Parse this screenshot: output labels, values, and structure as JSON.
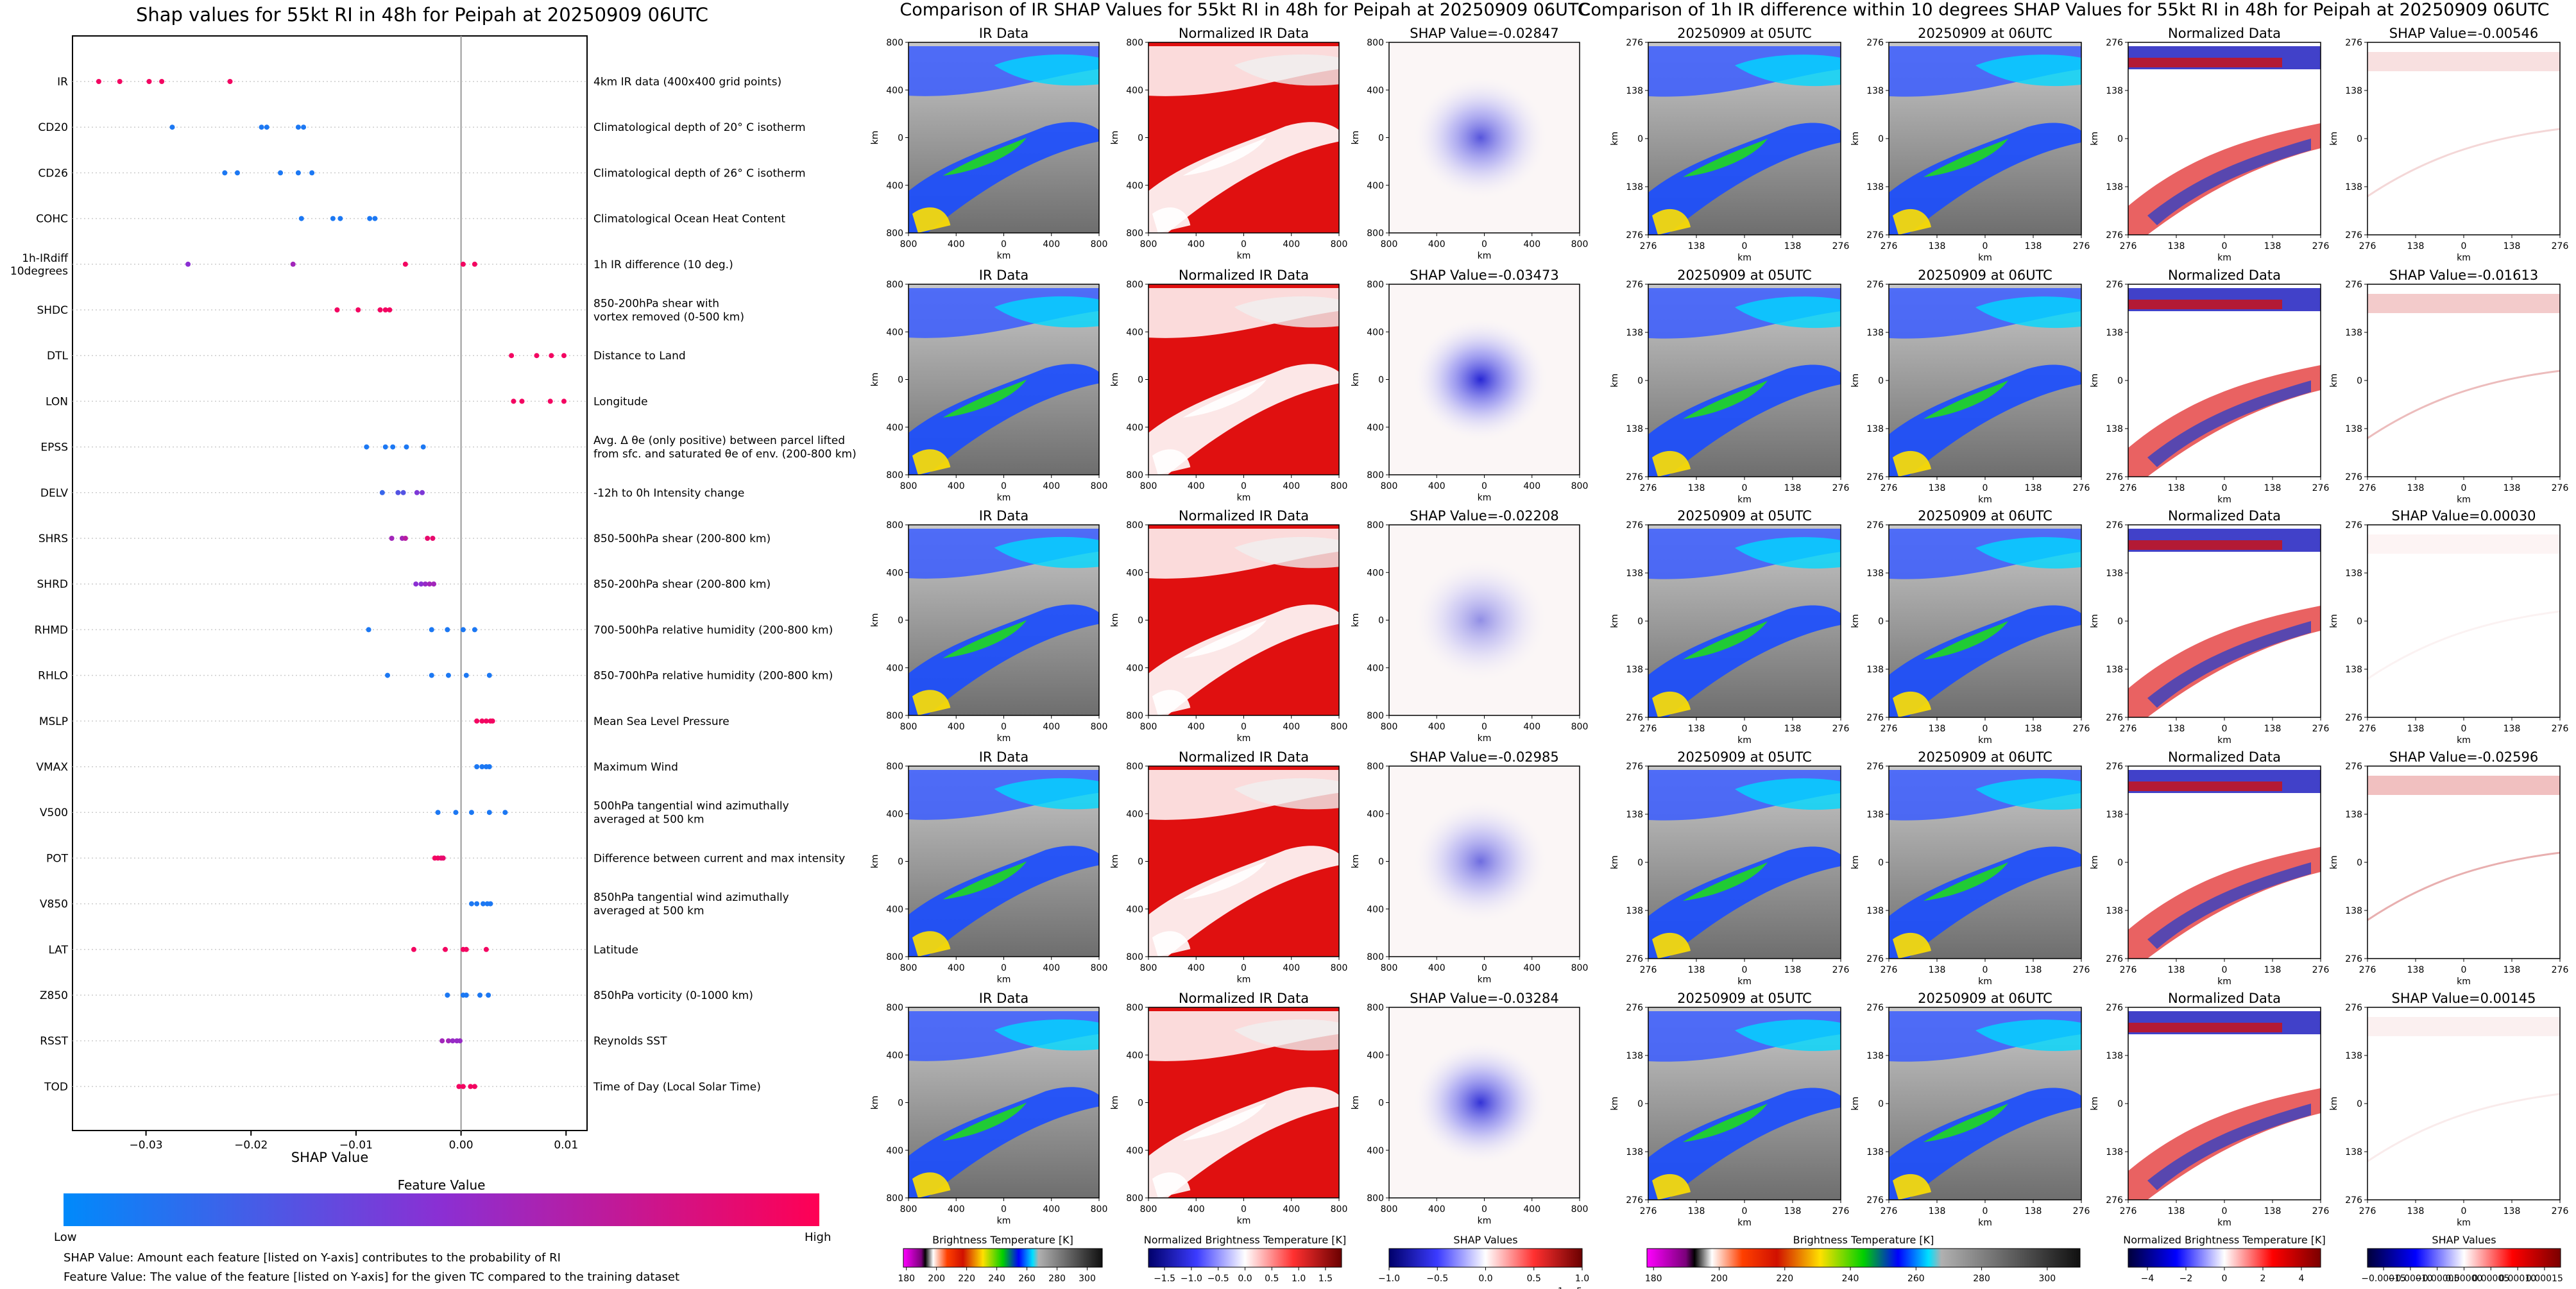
{
  "chart_data": [
    {
      "type": "scatter",
      "title": "Shap values for 55kt RI in 48h for Peipah at 20250909 06UTC",
      "xlabel": "SHAP Value",
      "xlim": [
        -0.037,
        0.012
      ],
      "xticks": [
        -0.03,
        -0.02,
        -0.01,
        0.0,
        0.01
      ],
      "xtick_labels": [
        "−0.03",
        "−0.02",
        "−0.01",
        "0.00",
        "0.01"
      ],
      "legend": {
        "title": "Feature Value",
        "low": "Low",
        "high": "High",
        "colors": [
          "#008afb",
          "#8b2fd3",
          "#ff0054"
        ]
      },
      "notes": [
        "SHAP Value: Amount each feature [listed on Y-axis] contributes to the probability of RI",
        "Feature Value: The value of the feature [listed on Y-axis] for the given TC compared to the training dataset"
      ],
      "features": [
        {
          "name": "IR",
          "desc": "4km IR data (400x400 grid points)",
          "points": [
            [
              -0.0345,
              0.95
            ],
            [
              -0.0325,
              0.95
            ],
            [
              -0.0297,
              0.95
            ],
            [
              -0.0285,
              0.95
            ],
            [
              -0.022,
              0.95
            ]
          ]
        },
        {
          "name": "CD20",
          "desc": "Climatological depth of 20° C isotherm",
          "points": [
            [
              -0.0275,
              0.1
            ],
            [
              -0.019,
              0.1
            ],
            [
              -0.0185,
              0.1
            ],
            [
              -0.0155,
              0.1
            ],
            [
              -0.015,
              0.1
            ]
          ]
        },
        {
          "name": "CD26",
          "desc": "Climatological depth of 26° C isotherm",
          "points": [
            [
              -0.0225,
              0.1
            ],
            [
              -0.0213,
              0.1
            ],
            [
              -0.0172,
              0.1
            ],
            [
              -0.0155,
              0.1
            ],
            [
              -0.0142,
              0.1
            ]
          ]
        },
        {
          "name": "COHC",
          "desc": "Climatological Ocean Heat Content",
          "points": [
            [
              -0.0152,
              0.1
            ],
            [
              -0.0122,
              0.1
            ],
            [
              -0.0115,
              0.1
            ],
            [
              -0.0087,
              0.1
            ],
            [
              -0.0082,
              0.1
            ]
          ]
        },
        {
          "name": "1h-IRdiff\n10degrees",
          "desc": "1h IR difference (10 deg.)",
          "points": [
            [
              -0.026,
              0.5
            ],
            [
              -0.016,
              0.6
            ],
            [
              -0.0053,
              0.95
            ],
            [
              0.0002,
              0.95
            ],
            [
              0.0013,
              0.95
            ]
          ]
        },
        {
          "name": "SHDC",
          "desc": "850-200hPa shear with\nvortex removed (0-500 km)",
          "points": [
            [
              -0.0118,
              0.95
            ],
            [
              -0.0098,
              0.95
            ],
            [
              -0.0077,
              0.95
            ],
            [
              -0.0072,
              0.95
            ],
            [
              -0.0068,
              0.95
            ]
          ]
        },
        {
          "name": "DTL",
          "desc": "Distance to Land",
          "points": [
            [
              0.0048,
              0.95
            ],
            [
              0.0072,
              0.95
            ],
            [
              0.0086,
              0.95
            ],
            [
              0.0098,
              0.95
            ]
          ]
        },
        {
          "name": "LON",
          "desc": "Longitude",
          "points": [
            [
              0.005,
              0.95
            ],
            [
              0.0058,
              0.95
            ],
            [
              0.0085,
              0.95
            ],
            [
              0.0098,
              0.95
            ]
          ]
        },
        {
          "name": "EPSS",
          "desc": "Avg. Δ θe (only positive) between parcel lifted\nfrom sfc. and saturated θe of env. (200-800 km)",
          "points": [
            [
              -0.009,
              0.1
            ],
            [
              -0.0072,
              0.1
            ],
            [
              -0.0065,
              0.1
            ],
            [
              -0.0052,
              0.1
            ],
            [
              -0.0036,
              0.1
            ]
          ]
        },
        {
          "name": "DELV",
          "desc": "-12h to 0h Intensity change",
          "points": [
            [
              -0.0075,
              0.2
            ],
            [
              -0.006,
              0.3
            ],
            [
              -0.0055,
              0.3
            ],
            [
              -0.0042,
              0.45
            ],
            [
              -0.0037,
              0.45
            ]
          ]
        },
        {
          "name": "SHRS",
          "desc": "850-500hPa shear (200-800 km)",
          "points": [
            [
              -0.0066,
              0.6
            ],
            [
              -0.0056,
              0.6
            ],
            [
              -0.0053,
              0.7
            ],
            [
              -0.0032,
              0.9
            ],
            [
              -0.0027,
              0.9
            ]
          ]
        },
        {
          "name": "SHRD",
          "desc": "850-200hPa shear (200-800 km)",
          "points": [
            [
              -0.0043,
              0.5
            ],
            [
              -0.0038,
              0.5
            ],
            [
              -0.0034,
              0.55
            ],
            [
              -0.003,
              0.6
            ],
            [
              -0.0026,
              0.6
            ]
          ]
        },
        {
          "name": "RHMD",
          "desc": "700-500hPa relative humidity (200-800 km)",
          "points": [
            [
              -0.0088,
              0.1
            ],
            [
              -0.0028,
              0.1
            ],
            [
              -0.0013,
              0.1
            ],
            [
              0.0002,
              0.1
            ],
            [
              0.0013,
              0.1
            ]
          ]
        },
        {
          "name": "RHLO",
          "desc": "850-700hPa relative humidity (200-800 km)",
          "points": [
            [
              -0.007,
              0.1
            ],
            [
              -0.0028,
              0.1
            ],
            [
              -0.0012,
              0.1
            ],
            [
              0.0005,
              0.1
            ],
            [
              0.0027,
              0.1
            ]
          ]
        },
        {
          "name": "MSLP",
          "desc": "Mean Sea Level Pressure",
          "points": [
            [
              0.0015,
              0.95
            ],
            [
              0.002,
              0.95
            ],
            [
              0.0024,
              0.95
            ],
            [
              0.0028,
              0.95
            ],
            [
              0.003,
              0.95
            ]
          ]
        },
        {
          "name": "VMAX",
          "desc": "Maximum Wind",
          "points": [
            [
              0.0015,
              0.1
            ],
            [
              0.002,
              0.1
            ],
            [
              0.0024,
              0.1
            ],
            [
              0.0027,
              0.1
            ]
          ]
        },
        {
          "name": "V500",
          "desc": "500hPa tangential wind azimuthally\naveraged at 500 km",
          "points": [
            [
              -0.0022,
              0.1
            ],
            [
              -0.0005,
              0.1
            ],
            [
              0.001,
              0.1
            ],
            [
              0.0027,
              0.1
            ],
            [
              0.0042,
              0.1
            ]
          ]
        },
        {
          "name": "POT",
          "desc": "Difference between current and max intensity",
          "points": [
            [
              -0.0025,
              0.95
            ],
            [
              -0.0022,
              0.95
            ],
            [
              -0.0019,
              0.9
            ],
            [
              -0.0017,
              0.9
            ]
          ]
        },
        {
          "name": "V850",
          "desc": "850hPa tangential wind azimuthally\naveraged at 500 km",
          "points": [
            [
              0.001,
              0.1
            ],
            [
              0.0015,
              0.1
            ],
            [
              0.0021,
              0.1
            ],
            [
              0.0025,
              0.1
            ],
            [
              0.0028,
              0.1
            ]
          ]
        },
        {
          "name": "LAT",
          "desc": "Latitude",
          "points": [
            [
              -0.0045,
              0.95
            ],
            [
              -0.0015,
              0.95
            ],
            [
              0.0002,
              0.95
            ],
            [
              0.0005,
              0.95
            ],
            [
              0.0024,
              0.95
            ]
          ]
        },
        {
          "name": "Z850",
          "desc": "850hPa vorticity (0-1000 km)",
          "points": [
            [
              -0.0013,
              0.1
            ],
            [
              0.0002,
              0.1
            ],
            [
              0.0005,
              0.1
            ],
            [
              0.0018,
              0.1
            ],
            [
              0.0026,
              0.1
            ]
          ]
        },
        {
          "name": "RSST",
          "desc": "Reynolds SST",
          "points": [
            [
              -0.0018,
              0.6
            ],
            [
              -0.0012,
              0.6
            ],
            [
              -0.0008,
              0.55
            ],
            [
              -0.0004,
              0.55
            ],
            [
              -0.0001,
              0.55
            ]
          ]
        },
        {
          "name": "TOD",
          "desc": "Time of Day (Local Solar Time)",
          "points": [
            [
              -0.0002,
              0.95
            ],
            [
              0.0002,
              0.95
            ],
            [
              0.0009,
              0.95
            ],
            [
              0.0013,
              0.95
            ]
          ]
        }
      ]
    },
    {
      "type": "heatmap",
      "title": "Comparison of IR SHAP Values for 55kt RI in 48h for Peipah at 20250909 06UTC",
      "columns": [
        {
          "title": "IR Data",
          "xticks": [
            "800",
            "400",
            "0",
            "400",
            "800"
          ],
          "yticks": [
            "800",
            "400",
            "0",
            "400",
            "800"
          ],
          "xlabel": "km",
          "ylabel": "km",
          "colormap": "brightness"
        },
        {
          "title": "Normalized IR Data",
          "xticks": [
            "800",
            "400",
            "0",
            "400",
            "800"
          ],
          "yticks": [
            "800",
            "400",
            "0",
            "400",
            "800"
          ],
          "xlabel": "km",
          "ylabel": "km",
          "colormap": "bwr"
        },
        {
          "title": "SHAP",
          "xticks": [
            "800",
            "400",
            "0",
            "400",
            "800"
          ],
          "yticks": [
            "800",
            "400",
            "0",
            "400",
            "800"
          ],
          "xlabel": "km",
          "ylabel": "km",
          "colormap": "bwr"
        }
      ],
      "row_shap_values": [
        "SHAP Value=-0.02847",
        "SHAP Value=-0.03473",
        "SHAP Value=-0.02208",
        "SHAP Value=-0.02985",
        "SHAP Value=-0.03284"
      ],
      "shap_intensity": [
        0.7,
        0.9,
        0.45,
        0.6,
        0.85
      ],
      "colorbars": [
        {
          "label": "Brightness Temperature [K]",
          "ticks": [
            "180",
            "200",
            "220",
            "240",
            "260",
            "280",
            "300"
          ],
          "range": [
            178,
            310
          ]
        },
        {
          "label": "Normalized Brightness Temperature [K]",
          "ticks": [
            "−1.5",
            "−1.0",
            "−0.5",
            "0.0",
            "0.5",
            "1.0",
            "1.5"
          ],
          "range": [
            -1.8,
            1.8
          ]
        },
        {
          "label": "SHAP Values",
          "ticks": [
            "−1.0",
            "−0.5",
            "0.0",
            "0.5",
            "1.0"
          ],
          "range": [
            -1.0,
            1.0
          ],
          "exponent": "1e−5"
        }
      ]
    },
    {
      "type": "heatmap",
      "title": "Comparison of 1h IR difference within 10 degrees SHAP Values for 55kt RI in 48h for Peipah at 20250909 06UTC",
      "columns": [
        {
          "title": "20250909 at 05UTC",
          "xticks": [
            "276",
            "138",
            "0",
            "138",
            "276"
          ],
          "yticks": [
            "276",
            "138",
            "0",
            "138",
            "276"
          ],
          "xlabel": "km",
          "ylabel": "km",
          "colormap": "brightness"
        },
        {
          "title": "20250909 at 06UTC",
          "xticks": [
            "276",
            "138",
            "0",
            "138",
            "276"
          ],
          "yticks": [
            "276",
            "138",
            "0",
            "138",
            "276"
          ],
          "xlabel": "km",
          "ylabel": "km",
          "colormap": "brightness"
        },
        {
          "title": "Normalized Data",
          "xticks": [
            "276",
            "138",
            "0",
            "138",
            "276"
          ],
          "yticks": [
            "276",
            "138",
            "0",
            "138",
            "276"
          ],
          "xlabel": "km",
          "ylabel": "km",
          "colormap": "bwr"
        },
        {
          "title": "SHAP",
          "xticks": [
            "276",
            "138",
            "0",
            "138",
            "276"
          ],
          "yticks": [
            "276",
            "138",
            "0",
            "138",
            "276"
          ],
          "xlabel": "km",
          "ylabel": "km",
          "colormap": "bwr"
        }
      ],
      "row_shap_values": [
        "SHAP Value=-0.00546",
        "SHAP Value=-0.01613",
        "SHAP Value=0.00030",
        "SHAP Value=-0.02596",
        "SHAP Value=0.00145"
      ],
      "shap_intensity": [
        0.3,
        0.5,
        0.1,
        0.6,
        0.15
      ],
      "colorbars": [
        {
          "label": "Brightness Temperature [K]",
          "ticks": [
            "180",
            "200",
            "220",
            "240",
            "260",
            "280",
            "300"
          ],
          "range": [
            178,
            310
          ]
        },
        {
          "label": "Normalized Brightness Temperature [K]",
          "ticks": [
            "−4",
            "−2",
            "0",
            "2",
            "4"
          ],
          "range": [
            -5,
            5
          ]
        },
        {
          "label": "SHAP Values",
          "ticks": [
            "−0.00015",
            "−0.00010",
            "−0.00005",
            "0.00000",
            "0.00005",
            "0.00010",
            "0.00015"
          ],
          "range": [
            -0.00018,
            0.00018
          ]
        }
      ]
    }
  ]
}
